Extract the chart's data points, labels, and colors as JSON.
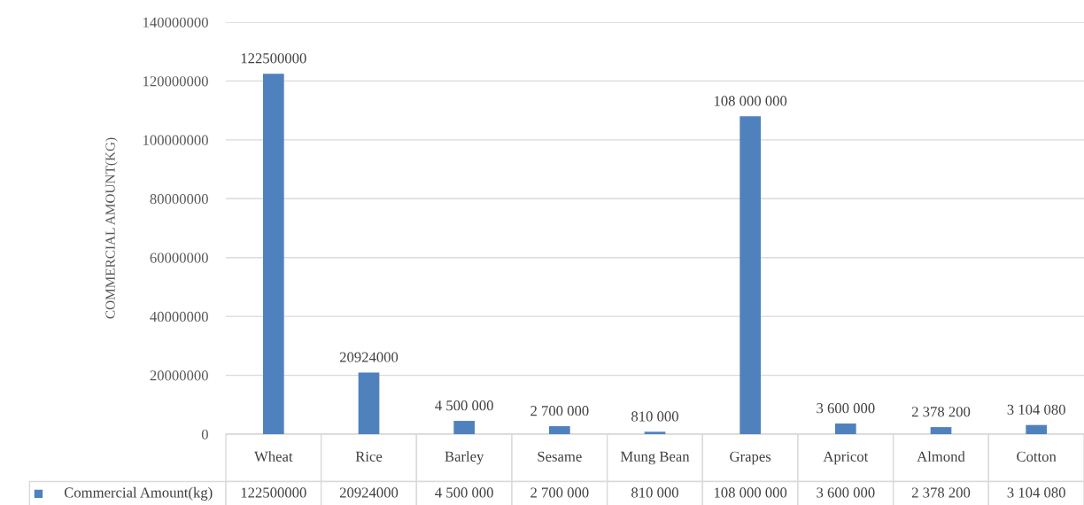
{
  "chart_data": {
    "type": "bar",
    "ylabel": "COMMERCIAL AMOUNT(KG)",
    "categories": [
      "Wheat",
      "Rice",
      "Barley",
      "Sesame",
      "Mung Bean",
      "Grapes",
      "Apricot",
      "Almond",
      "Cotton"
    ],
    "series": [
      {
        "name": "Commercial Amount(kg)",
        "color": "#4f81bd",
        "values": [
          122500000,
          20924000,
          4500000,
          2700000,
          810000,
          108000000,
          3600000,
          2378200,
          3104080
        ],
        "value_labels": [
          "122500000",
          "20924000",
          "4 500 000",
          "2 700 000",
          "810 000",
          "108 000 000",
          "3 600 000",
          "2 378 200",
          "3 104 080"
        ]
      }
    ],
    "ylim": [
      0,
      140000000
    ],
    "yticks": [
      0,
      20000000,
      40000000,
      60000000,
      80000000,
      100000000,
      120000000,
      140000000
    ],
    "grid": "y"
  }
}
